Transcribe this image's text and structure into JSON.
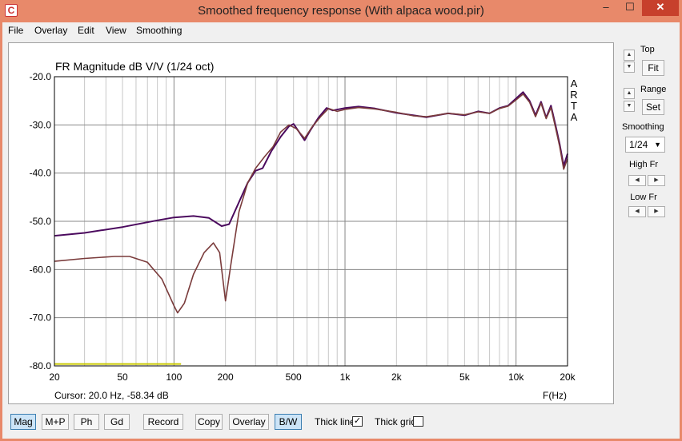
{
  "window": {
    "title": "Smoothed frequency response (With alpaca wood.pir)",
    "app_icon": "C",
    "minimize": "–",
    "maximize": "☐",
    "close": "✕"
  },
  "menu": [
    "File",
    "Overlay",
    "Edit",
    "View",
    "Smoothing"
  ],
  "plot": {
    "title": "FR Magnitude dB V/V (1/24 oct)",
    "watermark": [
      "A",
      "R",
      "T",
      "A"
    ],
    "cursor": "Cursor: 20.0 Hz, -58.34 dB",
    "xlabel": "F(Hz)",
    "y_ticks": [
      "-20.0",
      "-30.0",
      "-40.0",
      "-50.0",
      "-60.0",
      "-70.0",
      "-80.0"
    ],
    "x_ticks": [
      {
        "hz": 20,
        "label": "20"
      },
      {
        "hz": 50,
        "label": "50"
      },
      {
        "hz": 100,
        "label": "100"
      },
      {
        "hz": 200,
        "label": "200"
      },
      {
        "hz": 500,
        "label": "500"
      },
      {
        "hz": 1000,
        "label": "1k"
      },
      {
        "hz": 2000,
        "label": "2k"
      },
      {
        "hz": 5000,
        "label": "5k"
      },
      {
        "hz": 10000,
        "label": "10k"
      },
      {
        "hz": 20000,
        "label": "20k"
      }
    ],
    "colors": {
      "series1": "#4b0a5e",
      "series2": "#7a3b3b",
      "marker": "#c8c800",
      "grid": "#c8c8c8"
    }
  },
  "chart_data": {
    "type": "line",
    "title": "FR Magnitude dB V/V (1/24 oct)",
    "xlabel": "F(Hz)",
    "ylabel": "",
    "x_scale": "log",
    "xlim": [
      20,
      20000
    ],
    "ylim": [
      -80,
      -20
    ],
    "series": [
      {
        "points": [
          [
            20,
            -53
          ],
          [
            30,
            -52.4
          ],
          [
            50,
            -51.2
          ],
          [
            80,
            -49.8
          ],
          [
            100,
            -49.2
          ],
          [
            130,
            -48.9
          ],
          [
            160,
            -49.3
          ],
          [
            190,
            -51
          ],
          [
            210,
            -50.6
          ],
          [
            240,
            -46
          ],
          [
            270,
            -42
          ],
          [
            300,
            -39.5
          ],
          [
            330,
            -39
          ],
          [
            370,
            -35.5
          ],
          [
            420,
            -32.5
          ],
          [
            470,
            -30.3
          ],
          [
            500,
            -29.8
          ],
          [
            540,
            -31.5
          ],
          [
            580,
            -33.2
          ],
          [
            630,
            -31
          ],
          [
            700,
            -28.5
          ],
          [
            780,
            -26.5
          ],
          [
            850,
            -27
          ],
          [
            1000,
            -26.5
          ],
          [
            1200,
            -26.2
          ],
          [
            1500,
            -26.6
          ],
          [
            2000,
            -27.5
          ],
          [
            2500,
            -28
          ],
          [
            3000,
            -28.4
          ],
          [
            4000,
            -27.6
          ],
          [
            5000,
            -28
          ],
          [
            6000,
            -27.2
          ],
          [
            7000,
            -27.6
          ],
          [
            8000,
            -26.5
          ],
          [
            9000,
            -26
          ],
          [
            10000,
            -24.5
          ],
          [
            11000,
            -23.2
          ],
          [
            12000,
            -25
          ],
          [
            13000,
            -28
          ],
          [
            14000,
            -25.2
          ],
          [
            15000,
            -28.5
          ],
          [
            16000,
            -26
          ],
          [
            17000,
            -30
          ],
          [
            18000,
            -34
          ],
          [
            19000,
            -38.5
          ],
          [
            20000,
            -36
          ]
        ]
      },
      {
        "points": [
          [
            20,
            -58.3
          ],
          [
            30,
            -57.7
          ],
          [
            45,
            -57.3
          ],
          [
            55,
            -57.3
          ],
          [
            70,
            -58.5
          ],
          [
            85,
            -62
          ],
          [
            100,
            -67.5
          ],
          [
            105,
            -69
          ],
          [
            115,
            -67
          ],
          [
            130,
            -61
          ],
          [
            150,
            -56.5
          ],
          [
            170,
            -54.5
          ],
          [
            185,
            -56.5
          ],
          [
            200,
            -66.5
          ],
          [
            215,
            -59
          ],
          [
            240,
            -48
          ],
          [
            270,
            -42
          ],
          [
            300,
            -39
          ],
          [
            340,
            -36.5
          ],
          [
            380,
            -34.5
          ],
          [
            420,
            -31.5
          ],
          [
            470,
            -30
          ],
          [
            520,
            -30.8
          ],
          [
            580,
            -32.8
          ],
          [
            640,
            -30.5
          ],
          [
            720,
            -28.3
          ],
          [
            800,
            -26.6
          ],
          [
            900,
            -27.2
          ],
          [
            1000,
            -26.8
          ],
          [
            1200,
            -26.4
          ],
          [
            1500,
            -26.7
          ],
          [
            2000,
            -27.4
          ],
          [
            2500,
            -28.1
          ],
          [
            3000,
            -28.3
          ],
          [
            4000,
            -27.6
          ],
          [
            5000,
            -27.9
          ],
          [
            6000,
            -27.3
          ],
          [
            7000,
            -27.6
          ],
          [
            8000,
            -26.6
          ],
          [
            9000,
            -26.1
          ],
          [
            10000,
            -24.8
          ],
          [
            11000,
            -23.6
          ],
          [
            12000,
            -25.3
          ],
          [
            13000,
            -28.3
          ],
          [
            14000,
            -25.5
          ],
          [
            15000,
            -28.7
          ],
          [
            16000,
            -26.4
          ],
          [
            17000,
            -30.5
          ],
          [
            18000,
            -34.5
          ],
          [
            19000,
            -39.2
          ],
          [
            20000,
            -37
          ]
        ]
      },
      {
        "points": [
          [
            20,
            -79.6
          ],
          [
            110,
            -79.6
          ]
        ]
      }
    ]
  },
  "side_panel": {
    "top_label": "Top",
    "fit_label": "Fit",
    "range_label": "Range",
    "set_label": "Set",
    "smoothing_label": "Smoothing",
    "smoothing_value": "1/24",
    "high_fr_label": "High Fr",
    "low_fr_label": "Low Fr",
    "up_glyph": "▲",
    "down_glyph": "▼",
    "left_glyph": "◀",
    "right_glyph": "▶"
  },
  "bottom_bar": {
    "mag": "Mag",
    "mp": "M+P",
    "ph": "Ph",
    "gd": "Gd",
    "record": "Record",
    "copy": "Copy",
    "overlay": "Overlay",
    "bw": "B/W",
    "thick_line": "Thick line",
    "thick_line_checked": "✓",
    "thick_grid": "Thick grid"
  }
}
